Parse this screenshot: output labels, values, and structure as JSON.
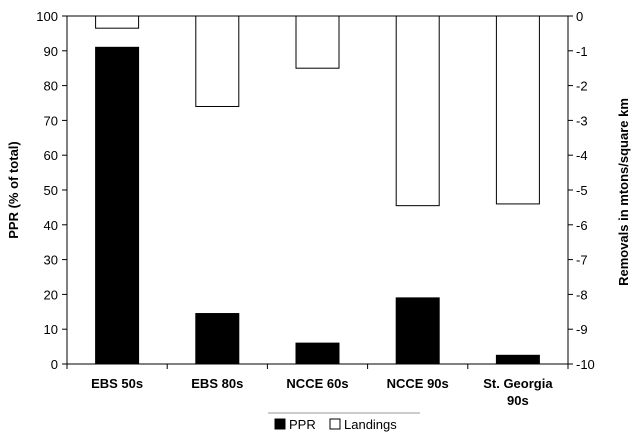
{
  "chart_data": {
    "type": "bar",
    "categories": [
      [
        "EBS 50s"
      ],
      [
        "EBS 80s"
      ],
      [
        "NCCE 60s"
      ],
      [
        "NCCE 90s"
      ],
      [
        "St. Georgia",
        "90s"
      ]
    ],
    "series": [
      {
        "name": "PPR",
        "axis": "left",
        "values": [
          91,
          14.5,
          6,
          19,
          2.5
        ],
        "color": "#000000"
      },
      {
        "name": "Landings",
        "axis": "right",
        "values": [
          -0.35,
          -2.6,
          -1.5,
          -5.45,
          -5.4
        ],
        "color": "#ffffff"
      }
    ],
    "ylabel": "PPR (% of total)",
    "ylabel_right": "Removals in mtons/square km",
    "ylim": [
      0,
      100
    ],
    "ylim_right": [
      -10,
      0
    ],
    "yticks": [
      0,
      10,
      20,
      30,
      40,
      50,
      60,
      70,
      80,
      90,
      100
    ],
    "yticks_right": [
      0,
      -1,
      -2,
      -3,
      -4,
      -5,
      -6,
      -7,
      -8,
      -9,
      -10
    ],
    "grid": false,
    "legend_placement": "bottom"
  }
}
